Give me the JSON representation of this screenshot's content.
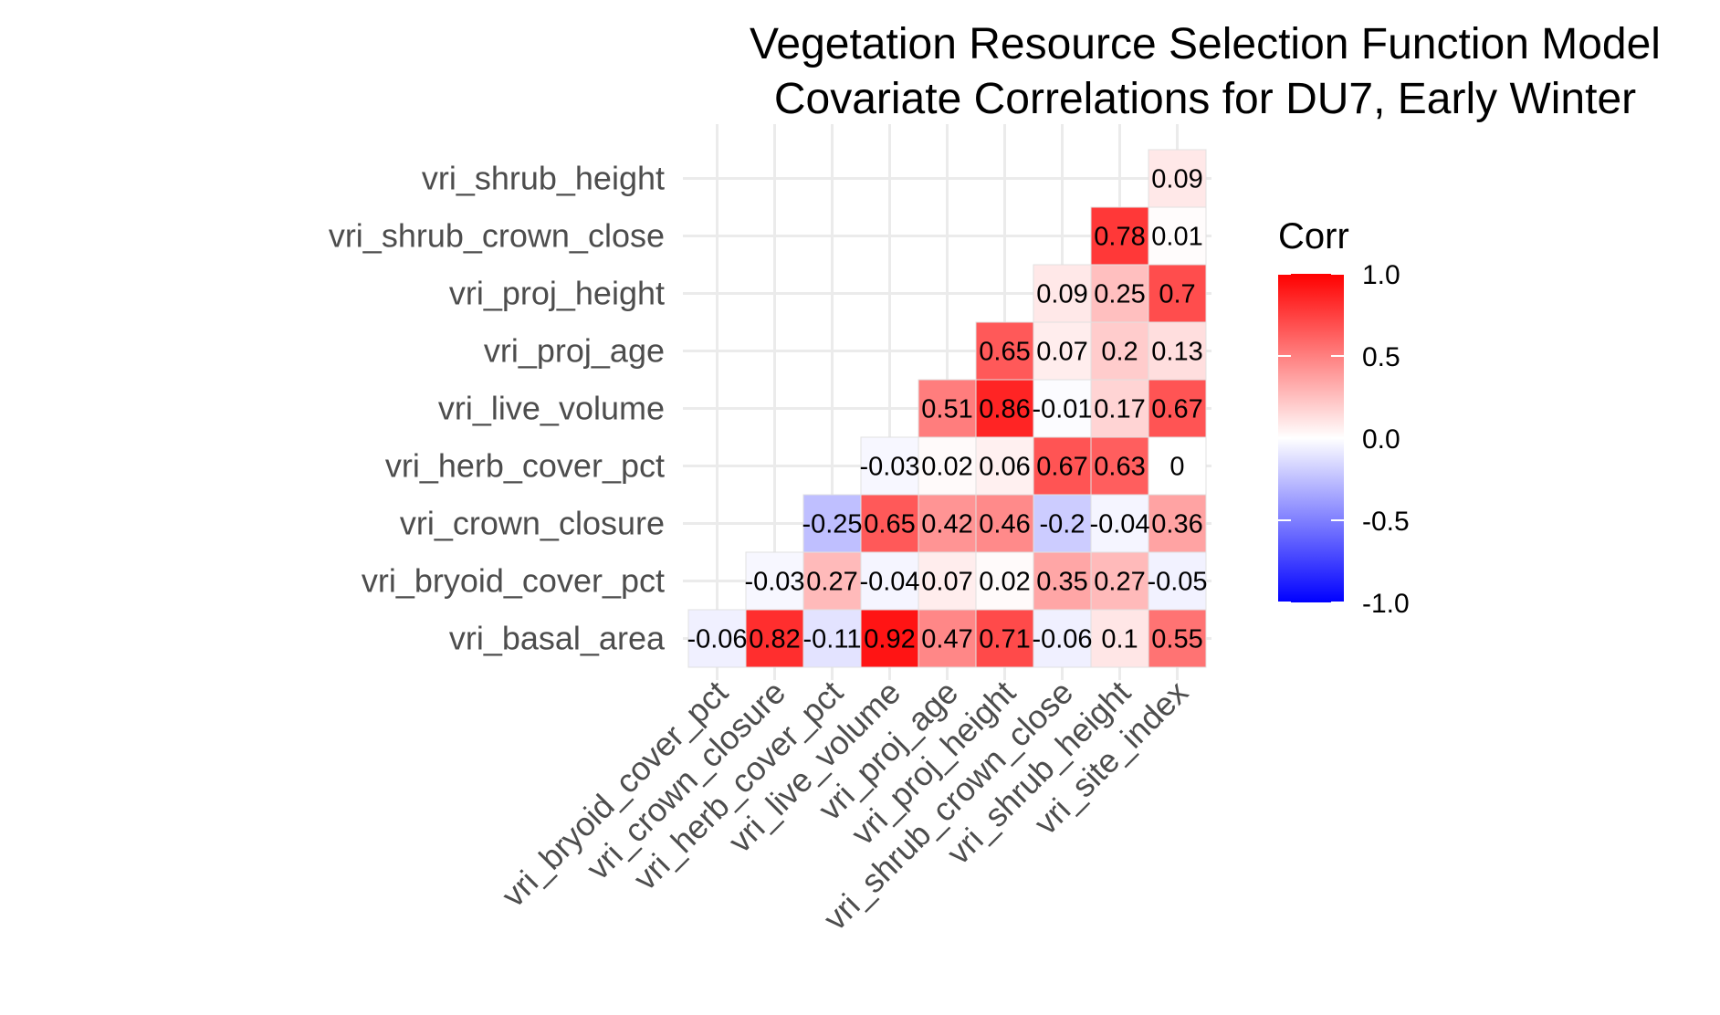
{
  "chart_data": {
    "type": "heatmap",
    "title": [
      "Vegetation Resource Selection Function Model",
      "Covariate Correlations for DU7, Early Winter"
    ],
    "x_categories": [
      "vri_bryoid_cover_pct",
      "vri_crown_closure",
      "vri_herb_cover_pct",
      "vri_live_volume",
      "vri_proj_age",
      "vri_proj_height",
      "vri_shrub_crown_close",
      "vri_shrub_height",
      "vri_site_index"
    ],
    "y_categories": [
      "vri_basal_area",
      "vri_bryoid_cover_pct",
      "vri_crown_closure",
      "vri_herb_cover_pct",
      "vri_live_volume",
      "vri_proj_age",
      "vri_proj_height",
      "vri_shrub_crown_close",
      "vri_shrub_height"
    ],
    "cells": [
      {
        "x": "vri_bryoid_cover_pct",
        "y": "vri_basal_area",
        "value": -0.06,
        "label": "-0.06"
      },
      {
        "x": "vri_crown_closure",
        "y": "vri_basal_area",
        "value": 0.82,
        "label": "0.82"
      },
      {
        "x": "vri_herb_cover_pct",
        "y": "vri_basal_area",
        "value": -0.11,
        "label": "-0.11"
      },
      {
        "x": "vri_live_volume",
        "y": "vri_basal_area",
        "value": 0.92,
        "label": "0.92"
      },
      {
        "x": "vri_proj_age",
        "y": "vri_basal_area",
        "value": 0.47,
        "label": "0.47"
      },
      {
        "x": "vri_proj_height",
        "y": "vri_basal_area",
        "value": 0.71,
        "label": "0.71"
      },
      {
        "x": "vri_shrub_crown_close",
        "y": "vri_basal_area",
        "value": -0.06,
        "label": "-0.06"
      },
      {
        "x": "vri_shrub_height",
        "y": "vri_basal_area",
        "value": 0.1,
        "label": "0.1"
      },
      {
        "x": "vri_site_index",
        "y": "vri_basal_area",
        "value": 0.55,
        "label": "0.55"
      },
      {
        "x": "vri_crown_closure",
        "y": "vri_bryoid_cover_pct",
        "value": -0.03,
        "label": "-0.03"
      },
      {
        "x": "vri_herb_cover_pct",
        "y": "vri_bryoid_cover_pct",
        "value": 0.27,
        "label": "0.27"
      },
      {
        "x": "vri_live_volume",
        "y": "vri_bryoid_cover_pct",
        "value": -0.04,
        "label": "-0.04"
      },
      {
        "x": "vri_proj_age",
        "y": "vri_bryoid_cover_pct",
        "value": 0.07,
        "label": "0.07"
      },
      {
        "x": "vri_proj_height",
        "y": "vri_bryoid_cover_pct",
        "value": 0.02,
        "label": "0.02"
      },
      {
        "x": "vri_shrub_crown_close",
        "y": "vri_bryoid_cover_pct",
        "value": 0.35,
        "label": "0.35"
      },
      {
        "x": "vri_shrub_height",
        "y": "vri_bryoid_cover_pct",
        "value": 0.27,
        "label": "0.27"
      },
      {
        "x": "vri_site_index",
        "y": "vri_bryoid_cover_pct",
        "value": -0.05,
        "label": "-0.05"
      },
      {
        "x": "vri_herb_cover_pct",
        "y": "vri_crown_closure",
        "value": -0.25,
        "label": "-0.25"
      },
      {
        "x": "vri_live_volume",
        "y": "vri_crown_closure",
        "value": 0.65,
        "label": "0.65"
      },
      {
        "x": "vri_proj_age",
        "y": "vri_crown_closure",
        "value": 0.42,
        "label": "0.42"
      },
      {
        "x": "vri_proj_height",
        "y": "vri_crown_closure",
        "value": 0.46,
        "label": "0.46"
      },
      {
        "x": "vri_shrub_crown_close",
        "y": "vri_crown_closure",
        "value": -0.2,
        "label": "-0.2"
      },
      {
        "x": "vri_shrub_height",
        "y": "vri_crown_closure",
        "value": -0.04,
        "label": "-0.04"
      },
      {
        "x": "vri_site_index",
        "y": "vri_crown_closure",
        "value": 0.36,
        "label": "0.36"
      },
      {
        "x": "vri_live_volume",
        "y": "vri_herb_cover_pct",
        "value": -0.03,
        "label": "-0.03"
      },
      {
        "x": "vri_proj_age",
        "y": "vri_herb_cover_pct",
        "value": 0.02,
        "label": "0.02"
      },
      {
        "x": "vri_proj_height",
        "y": "vri_herb_cover_pct",
        "value": 0.06,
        "label": "0.06"
      },
      {
        "x": "vri_shrub_crown_close",
        "y": "vri_herb_cover_pct",
        "value": 0.67,
        "label": "0.67"
      },
      {
        "x": "vri_shrub_height",
        "y": "vri_herb_cover_pct",
        "value": 0.63,
        "label": "0.63"
      },
      {
        "x": "vri_site_index",
        "y": "vri_herb_cover_pct",
        "value": 0,
        "label": "0"
      },
      {
        "x": "vri_proj_age",
        "y": "vri_live_volume",
        "value": 0.51,
        "label": "0.51"
      },
      {
        "x": "vri_proj_height",
        "y": "vri_live_volume",
        "value": 0.86,
        "label": "0.86"
      },
      {
        "x": "vri_shrub_crown_close",
        "y": "vri_live_volume",
        "value": -0.01,
        "label": "-0.01"
      },
      {
        "x": "vri_shrub_height",
        "y": "vri_live_volume",
        "value": 0.17,
        "label": "0.17"
      },
      {
        "x": "vri_site_index",
        "y": "vri_live_volume",
        "value": 0.67,
        "label": "0.67"
      },
      {
        "x": "vri_proj_height",
        "y": "vri_proj_age",
        "value": 0.65,
        "label": "0.65"
      },
      {
        "x": "vri_shrub_crown_close",
        "y": "vri_proj_age",
        "value": 0.07,
        "label": "0.07"
      },
      {
        "x": "vri_shrub_height",
        "y": "vri_proj_age",
        "value": 0.2,
        "label": "0.2"
      },
      {
        "x": "vri_site_index",
        "y": "vri_proj_age",
        "value": 0.13,
        "label": "0.13"
      },
      {
        "x": "vri_shrub_crown_close",
        "y": "vri_proj_height",
        "value": 0.09,
        "label": "0.09"
      },
      {
        "x": "vri_shrub_height",
        "y": "vri_proj_height",
        "value": 0.25,
        "label": "0.25"
      },
      {
        "x": "vri_site_index",
        "y": "vri_proj_height",
        "value": 0.7,
        "label": "0.7"
      },
      {
        "x": "vri_shrub_height",
        "y": "vri_shrub_crown_close",
        "value": 0.78,
        "label": "0.78"
      },
      {
        "x": "vri_site_index",
        "y": "vri_shrub_crown_close",
        "value": 0.01,
        "label": "0.01"
      },
      {
        "x": "vri_site_index",
        "y": "vri_shrub_height",
        "value": 0.09,
        "label": "0.09"
      }
    ],
    "legend": {
      "title": "Corr",
      "placement": "right",
      "range": [
        -1,
        1
      ],
      "ticks": [
        1.0,
        0.5,
        0.0,
        -0.5,
        -1.0
      ],
      "tick_labels": [
        "1.0",
        "0.5",
        "0.0",
        "-0.5",
        "-1.0"
      ],
      "colors": {
        "low": "#0000ff",
        "mid": "#ffffff",
        "high": "#ff0000"
      }
    },
    "grid": true,
    "xlabel": "",
    "ylabel": ""
  }
}
